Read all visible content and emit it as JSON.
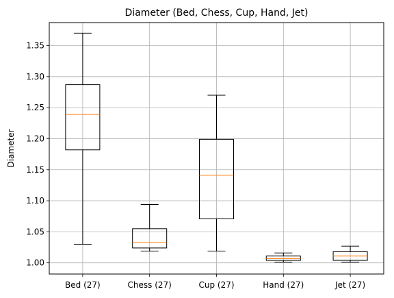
{
  "chart_data": {
    "type": "box",
    "title": "Diameter (Bed, Chess, Cup, Hand, Jet)",
    "xlabel": "",
    "ylabel": "Diameter",
    "ylim": [
      0.982,
      1.387
    ],
    "yticks": [
      "1.00",
      "1.05",
      "1.10",
      "1.15",
      "1.20",
      "1.25",
      "1.30",
      "1.35"
    ],
    "grid": true,
    "categories": [
      "Bed (27)",
      "Chess (27)",
      "Cup (27)",
      "Hand (27)",
      "Jet (27)"
    ],
    "boxes": [
      {
        "category": "Bed (27)",
        "whisker_low": 1.03,
        "q1": 1.182,
        "median": 1.239,
        "q3": 1.287,
        "whisker_high": 1.37
      },
      {
        "category": "Chess (27)",
        "whisker_low": 1.019,
        "q1": 1.024,
        "median": 1.033,
        "q3": 1.055,
        "whisker_high": 1.094
      },
      {
        "category": "Cup (27)",
        "whisker_low": 1.019,
        "q1": 1.071,
        "median": 1.141,
        "q3": 1.199,
        "whisker_high": 1.27
      },
      {
        "category": "Hand (27)",
        "whisker_low": 1.001,
        "q1": 1.004,
        "median": 1.007,
        "q3": 1.011,
        "whisker_high": 1.016
      },
      {
        "category": "Jet (27)",
        "whisker_low": 1.001,
        "q1": 1.004,
        "median": 1.011,
        "q3": 1.018,
        "whisker_high": 1.027
      }
    ],
    "colors": {
      "box": "#000000",
      "median": "#ff7f0e",
      "grid": "#b0b0b0"
    }
  }
}
